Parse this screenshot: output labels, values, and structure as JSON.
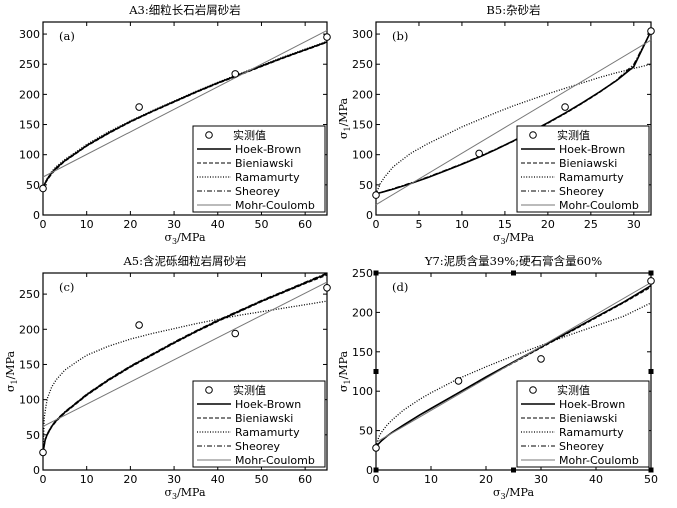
{
  "chart_data": [
    {
      "id": "a",
      "type": "line",
      "title": "A3:细粒长石岩屑砂岩",
      "panel_label": "(a)",
      "xlabel": "σ3/MPa",
      "ylabel": "",
      "xlim": [
        0,
        65
      ],
      "ylim": [
        0,
        320
      ],
      "xticks": [
        0,
        10,
        20,
        30,
        40,
        50,
        60
      ],
      "yticks": [
        0,
        50,
        100,
        150,
        200,
        250,
        300
      ],
      "measured": [
        [
          0,
          44
        ],
        [
          22,
          179
        ],
        [
          44,
          234
        ],
        [
          65,
          295
        ]
      ],
      "series": [
        {
          "name": "Hoek-Brown",
          "style": "solid-bold",
          "x": [
            0,
            0.5,
            1,
            2,
            3,
            5,
            8,
            10,
            15,
            20,
            25,
            30,
            35,
            40,
            45,
            50,
            55,
            60,
            65
          ],
          "y": [
            44,
            53,
            60,
            70,
            78,
            90,
            105,
            115,
            136,
            155,
            172,
            188,
            204,
            219,
            233,
            247,
            261,
            274,
            287
          ]
        },
        {
          "name": "Bieniawski",
          "style": "dashed",
          "x": [
            0,
            0.5,
            1,
            2,
            3,
            5,
            8,
            10,
            15,
            20,
            25,
            30,
            35,
            40,
            45,
            50,
            55,
            60,
            65
          ],
          "y": [
            44,
            52,
            58,
            68,
            76,
            89,
            104,
            114,
            135,
            154,
            171,
            187,
            203,
            218,
            232,
            246,
            260,
            273,
            286
          ]
        },
        {
          "name": "Ramamurty",
          "style": "dotted",
          "x": [
            0,
            0.5,
            1,
            2,
            3,
            5,
            8,
            10,
            15,
            20,
            25,
            30,
            35,
            40,
            45,
            50,
            55,
            60,
            65
          ],
          "y": [
            44,
            54,
            61,
            72,
            80,
            92,
            107,
            117,
            138,
            156,
            173,
            189,
            205,
            220,
            234,
            248,
            262,
            275,
            288
          ]
        },
        {
          "name": "Sheorey",
          "style": "dashdot",
          "x": [
            0,
            0.5,
            1,
            2,
            3,
            5,
            8,
            10,
            15,
            20,
            25,
            30,
            35,
            40,
            45,
            50,
            55,
            60,
            65
          ],
          "y": [
            44,
            53,
            59,
            69,
            77,
            90,
            105,
            115,
            136,
            155,
            172,
            188,
            204,
            219,
            233,
            247,
            261,
            274,
            287
          ]
        },
        {
          "name": "Mohr-Coulomb",
          "style": "thin-gray",
          "x": [
            0,
            65
          ],
          "y": [
            63,
            306
          ]
        }
      ],
      "legend": {
        "measured_label": "实测值",
        "entries": [
          "Hoek-Brown",
          "Bieniawski",
          "Ramamurty",
          "Sheorey",
          "Mohr-Coulomb"
        ],
        "position": "bottom-right"
      }
    },
    {
      "id": "b",
      "type": "line",
      "title": "B5:杂砂岩",
      "panel_label": "(b)",
      "xlabel": "σ3/MPa",
      "ylabel": "σ1/MPa",
      "xlim": [
        0,
        32
      ],
      "ylim": [
        0,
        320
      ],
      "xticks": [
        0,
        5,
        10,
        15,
        20,
        25,
        30
      ],
      "yticks": [
        0,
        50,
        100,
        150,
        200,
        250,
        300
      ],
      "measured": [
        [
          0,
          33
        ],
        [
          12,
          102
        ],
        [
          22,
          179
        ],
        [
          32,
          305
        ]
      ],
      "series": [
        {
          "name": "Hoek-Brown",
          "style": "solid-bold",
          "x": [
            0,
            2,
            4,
            6,
            8,
            10,
            12,
            14,
            16,
            18,
            20,
            22,
            24,
            26,
            28,
            30,
            32
          ],
          "y": [
            35,
            43,
            52,
            62,
            73,
            84,
            96,
            109,
            123,
            138,
            153,
            169,
            186,
            204,
            223,
            246,
            305
          ]
        },
        {
          "name": "Bieniawski",
          "style": "dashed",
          "x": [
            0,
            2,
            4,
            6,
            8,
            10,
            12,
            14,
            16,
            18,
            20,
            22,
            24,
            26,
            28,
            30,
            32
          ],
          "y": [
            35,
            43,
            52,
            62,
            73,
            84,
            96,
            109,
            122,
            137,
            152,
            168,
            185,
            203,
            223,
            247,
            305
          ]
        },
        {
          "name": "Ramamurty",
          "style": "dotted",
          "x": [
            0,
            0.5,
            1,
            2,
            4,
            6,
            8,
            10,
            12,
            14,
            16,
            18,
            20,
            22,
            24,
            26,
            28,
            30,
            32
          ],
          "y": [
            35,
            52,
            63,
            80,
            102,
            118,
            132,
            146,
            158,
            170,
            181,
            191,
            201,
            210,
            219,
            228,
            236,
            243,
            250
          ]
        },
        {
          "name": "Sheorey",
          "style": "dashdot",
          "x": [
            0,
            2,
            4,
            6,
            8,
            10,
            12,
            14,
            16,
            18,
            20,
            22,
            24,
            26,
            28,
            30,
            32
          ],
          "y": [
            35,
            44,
            53,
            63,
            74,
            85,
            97,
            110,
            123,
            138,
            153,
            169,
            186,
            204,
            224,
            250,
            305
          ]
        },
        {
          "name": "Mohr-Coulomb",
          "style": "thin-gray",
          "x": [
            0,
            32
          ],
          "y": [
            17,
            290
          ]
        }
      ],
      "legend": {
        "measured_label": "实测值",
        "entries": [
          "Hoek-Brown",
          "Bieniawski",
          "Ramamurty",
          "Sheorey",
          "Mohr-Coulomb"
        ],
        "position": "bottom-right"
      }
    },
    {
      "id": "c",
      "type": "line",
      "title": "A5:含泥砾细粒岩屑砂岩",
      "panel_label": "(c)",
      "xlabel": "σ3/MPa",
      "ylabel": "σ1/MPa",
      "xlim": [
        0,
        65
      ],
      "ylim": [
        0,
        280
      ],
      "xticks": [
        0,
        10,
        20,
        30,
        40,
        50,
        60
      ],
      "yticks": [
        0,
        50,
        100,
        150,
        200,
        250
      ],
      "measured": [
        [
          0,
          25
        ],
        [
          22,
          206
        ],
        [
          44,
          194
        ],
        [
          65,
          259
        ]
      ],
      "series": [
        {
          "name": "Hoek-Brown",
          "style": "solid-bold",
          "x": [
            0,
            0.5,
            1,
            2,
            3,
            5,
            8,
            10,
            15,
            20,
            25,
            30,
            35,
            40,
            45,
            50,
            55,
            60,
            65
          ],
          "y": [
            25,
            43,
            51,
            62,
            70,
            82,
            97,
            107,
            128,
            147,
            164,
            181,
            197,
            212,
            226,
            240,
            253,
            266,
            279
          ]
        },
        {
          "name": "Bieniawski",
          "style": "dashed",
          "x": [
            0,
            0.5,
            1,
            2,
            3,
            5,
            8,
            10,
            15,
            20,
            25,
            30,
            35,
            40,
            45,
            50,
            55,
            60,
            65
          ],
          "y": [
            25,
            42,
            50,
            61,
            69,
            81,
            96,
            106,
            127,
            146,
            163,
            180,
            196,
            211,
            225,
            239,
            252,
            265,
            277
          ]
        },
        {
          "name": "Ramamurty",
          "style": "dotted",
          "x": [
            0,
            0.3,
            0.7,
            1,
            2,
            3,
            5,
            8,
            10,
            15,
            20,
            25,
            30,
            35,
            40,
            45,
            50,
            55,
            60,
            65
          ],
          "y": [
            25,
            75,
            92,
            102,
            118,
            128,
            142,
            155,
            163,
            176,
            186,
            194,
            201,
            208,
            214,
            220,
            225,
            230,
            235,
            240
          ]
        },
        {
          "name": "Sheorey",
          "style": "dashdot",
          "x": [
            0,
            0.5,
            1,
            2,
            3,
            5,
            8,
            10,
            15,
            20,
            25,
            30,
            35,
            40,
            45,
            50,
            55,
            60,
            65
          ],
          "y": [
            25,
            44,
            52,
            63,
            71,
            83,
            98,
            108,
            129,
            148,
            165,
            182,
            198,
            213,
            227,
            241,
            254,
            267,
            280
          ]
        },
        {
          "name": "Mohr-Coulomb",
          "style": "thin-gray",
          "x": [
            0,
            65
          ],
          "y": [
            62,
            267
          ]
        }
      ],
      "legend": {
        "measured_label": "实测值",
        "entries": [
          "Hoek-Brown",
          "Bieniawski",
          "Ramamurty",
          "Sheorey",
          "Mohr-Coulomb"
        ],
        "position": "bottom-right"
      }
    },
    {
      "id": "d",
      "type": "line",
      "title": "Y7:泥质含量39%;硬石膏含量60%",
      "panel_label": "(d)",
      "xlabel": "σ3/MPa",
      "ylabel": "σ1/MPa",
      "xlim": [
        0,
        50
      ],
      "ylim": [
        0,
        250
      ],
      "xticks": [
        0,
        10,
        20,
        30,
        40,
        50
      ],
      "yticks": [
        0,
        50,
        100,
        150,
        200,
        250
      ],
      "measured": [
        [
          0,
          28
        ],
        [
          15,
          113
        ],
        [
          30,
          141
        ],
        [
          50,
          240
        ]
      ],
      "series": [
        {
          "name": "Hoek-Brown",
          "style": "solid-bold",
          "x": [
            0,
            1,
            2,
            3,
            5,
            8,
            10,
            15,
            20,
            25,
            30,
            35,
            40,
            45,
            50
          ],
          "y": [
            30,
            37,
            43,
            48,
            57,
            70,
            78,
            98,
            118,
            137,
            156,
            175,
            194,
            213,
            234
          ]
        },
        {
          "name": "Bieniawski",
          "style": "dashed",
          "x": [
            0,
            1,
            2,
            3,
            5,
            8,
            10,
            15,
            20,
            25,
            30,
            35,
            40,
            45,
            50
          ],
          "y": [
            30,
            37,
            43,
            48,
            57,
            70,
            78,
            98,
            117,
            136,
            155,
            174,
            193,
            212,
            232
          ]
        },
        {
          "name": "Ramamurty",
          "style": "dotted",
          "x": [
            0,
            0.5,
            1,
            2,
            3,
            5,
            8,
            10,
            15,
            20,
            25,
            30,
            35,
            40,
            45,
            50
          ],
          "y": [
            30,
            42,
            48,
            57,
            64,
            76,
            90,
            98,
            116,
            131,
            145,
            158,
            171,
            183,
            195,
            212
          ]
        },
        {
          "name": "Sheorey",
          "style": "dashdot",
          "x": [
            0,
            1,
            2,
            3,
            5,
            8,
            10,
            15,
            20,
            25,
            30,
            35,
            40,
            45,
            50
          ],
          "y": [
            30,
            37,
            43,
            48,
            57,
            70,
            78,
            98,
            118,
            137,
            156,
            175,
            194,
            213,
            234
          ]
        },
        {
          "name": "Mohr-Coulomb",
          "style": "thin-gray",
          "x": [
            0,
            50
          ],
          "y": [
            35,
            238
          ]
        }
      ],
      "legend": {
        "measured_label": "实测值",
        "entries": [
          "Hoek-Brown",
          "Bieniawski",
          "Ramamurty",
          "Sheorey",
          "Mohr-Coulomb"
        ],
        "position": "bottom-right"
      }
    }
  ]
}
